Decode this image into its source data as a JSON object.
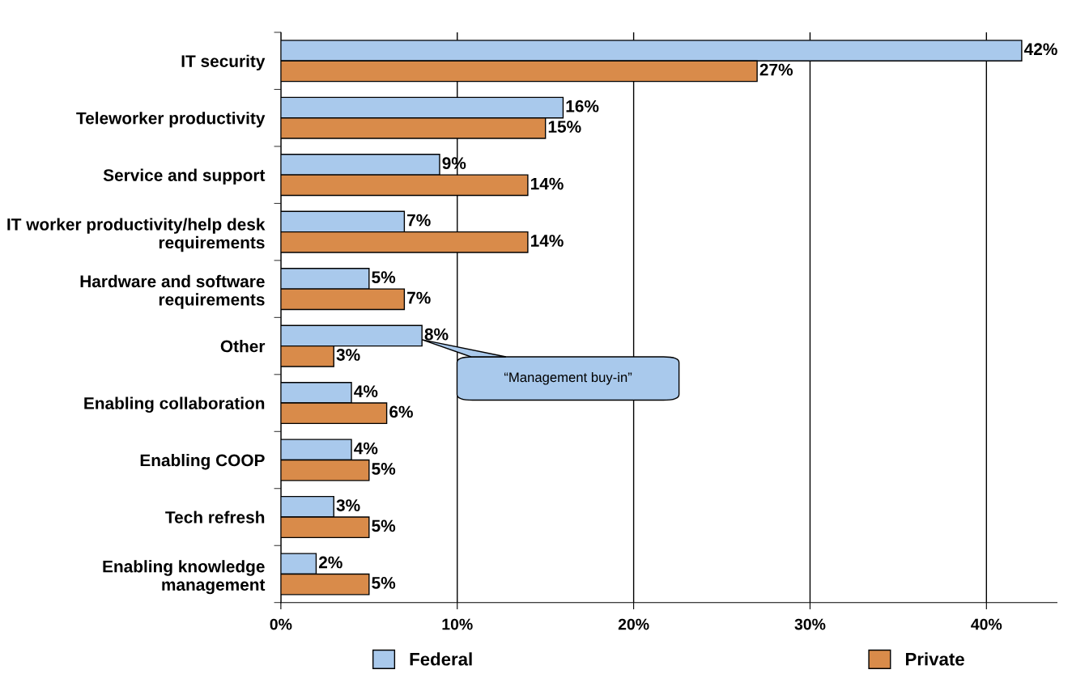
{
  "chart_data": {
    "type": "bar",
    "orientation": "horizontal",
    "categories": [
      "IT security",
      "Teleworker productivity",
      "Service and support",
      "IT worker productivity/help desk requirements",
      "Hardware and software requirements",
      "Other",
      "Enabling collaboration",
      "Enabling COOP",
      "Tech refresh",
      "Enabling knowledge management"
    ],
    "series": [
      {
        "name": "Federal",
        "color": "#a9c9ec",
        "values": [
          42,
          16,
          9,
          7,
          5,
          8,
          4,
          4,
          3,
          2
        ],
        "value_labels": [
          "42%",
          "16%",
          "9%",
          "7%",
          "5%",
          "8%",
          "4%",
          "4%",
          "3%",
          "2%"
        ]
      },
      {
        "name": "Private",
        "color": "#d98b4a",
        "values": [
          27,
          15,
          14,
          14,
          7,
          3,
          6,
          5,
          5,
          5
        ],
        "value_labels": [
          "27%",
          "15%",
          "14%",
          "14%",
          "7%",
          "3%",
          "6%",
          "5%",
          "5%",
          "5%"
        ]
      }
    ],
    "xlim": [
      0,
      44
    ],
    "xticks": [
      {
        "value": 0,
        "label": "0%"
      },
      {
        "value": 10,
        "label": "10%"
      },
      {
        "value": 20,
        "label": "20%"
      },
      {
        "value": 30,
        "label": "30%"
      },
      {
        "value": 40,
        "label": "40%"
      }
    ],
    "grid": "x",
    "legend": "bottom",
    "annotations": [
      "“Management buy-in”"
    ]
  }
}
